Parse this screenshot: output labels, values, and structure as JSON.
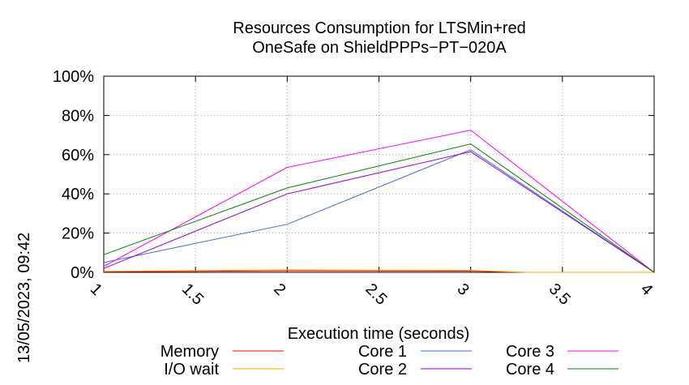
{
  "chart_data": {
    "type": "line",
    "title_line1": "Resources Consumption for LTSMin+red",
    "title_line2": "OneSafe on ShieldPPPs−PT−020A",
    "xlabel": "Execution time (seconds)",
    "ylabel": "",
    "xlim": [
      1,
      4
    ],
    "ylim": [
      0,
      100
    ],
    "grid": true,
    "legend_placement": "bottom",
    "x_ticks": [
      {
        "value": 1,
        "label": "1"
      },
      {
        "value": 1.5,
        "label": "1.5"
      },
      {
        "value": 2,
        "label": "2"
      },
      {
        "value": 2.5,
        "label": "2.5"
      },
      {
        "value": 3,
        "label": "3"
      },
      {
        "value": 3.5,
        "label": "3.5"
      },
      {
        "value": 4,
        "label": "4"
      }
    ],
    "y_ticks": [
      {
        "value": 0,
        "label": "0%"
      },
      {
        "value": 20,
        "label": "20%"
      },
      {
        "value": 40,
        "label": "40%"
      },
      {
        "value": 60,
        "label": "60%"
      },
      {
        "value": 80,
        "label": "80%"
      },
      {
        "value": 100,
        "label": "100%"
      }
    ],
    "series": [
      {
        "name": "Memory",
        "color": "#ff0000",
        "x": [
          1,
          2,
          3,
          3.3,
          4
        ],
        "values": [
          0.3,
          0.8,
          0.6,
          0,
          0
        ]
      },
      {
        "name": "I/O wait",
        "color": "#ffa500",
        "x": [
          1,
          2,
          3,
          3.3,
          4
        ],
        "values": [
          0.5,
          1.3,
          1.0,
          0,
          0
        ]
      },
      {
        "name": "Core 1",
        "color": "#4169e1",
        "x": [
          1,
          2,
          3,
          4
        ],
        "values": [
          5,
          24.5,
          62.5,
          0
        ]
      },
      {
        "name": "Core 2",
        "color": "#9400d3",
        "x": [
          1,
          2,
          3,
          4
        ],
        "values": [
          2,
          40,
          61.5,
          0
        ]
      },
      {
        "name": "Core 3",
        "color": "#ff00ff",
        "x": [
          1,
          2,
          3,
          4
        ],
        "values": [
          3,
          53.5,
          72.5,
          0
        ]
      },
      {
        "name": "Core 4",
        "color": "#008000",
        "x": [
          1,
          2,
          3,
          4
        ],
        "values": [
          9,
          43,
          65.5,
          0
        ]
      }
    ]
  },
  "timestamp": "13/05/2023, 09:42"
}
